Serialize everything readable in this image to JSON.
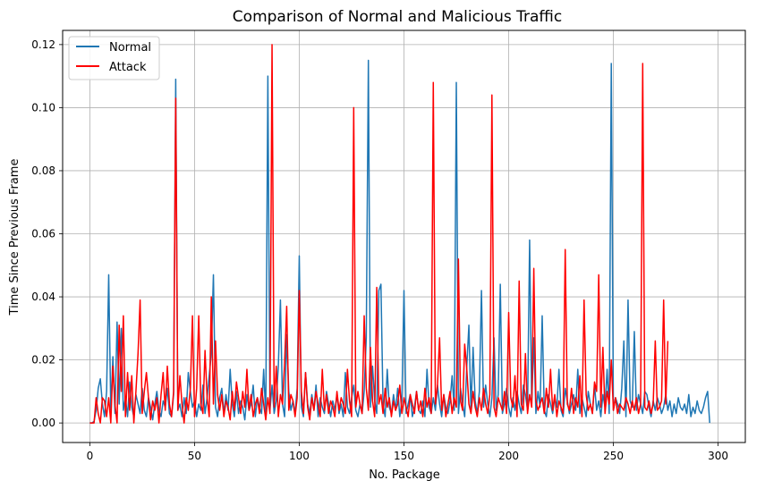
{
  "chart_data": {
    "type": "line",
    "title": "Comparison of Normal and Malicious Traffic",
    "xlabel": "No. Package",
    "ylabel": "Time Since Previous Frame",
    "xlim": [
      -13,
      313
    ],
    "ylim": [
      -0.0062,
      0.1245
    ],
    "xticks": [
      0,
      50,
      100,
      150,
      200,
      250,
      300
    ],
    "yticks": [
      0.0,
      0.02,
      0.04,
      0.06,
      0.08,
      0.1,
      0.12
    ],
    "ytick_labels": [
      "0.00",
      "0.02",
      "0.04",
      "0.06",
      "0.08",
      "0.10",
      "0.12"
    ],
    "grid": true,
    "legend_position": "top-left",
    "series": [
      {
        "name": "Normal",
        "color": "#1f77b4",
        "values": [
          0,
          0,
          0.0005,
          0.004,
          0.011,
          0.014,
          0.006,
          0.002,
          0.01,
          0.047,
          0.004,
          0.021,
          0.003,
          0.032,
          0.006,
          0.03,
          0.004,
          0.008,
          0.002,
          0.013,
          0.005,
          0.002,
          0.009,
          0.006,
          0.003,
          0.011,
          0.004,
          0.002,
          0.008,
          0.005,
          0.001,
          0.006,
          0.01,
          0.004,
          0.002,
          0.007,
          0.005,
          0.011,
          0.003,
          0.002,
          0.009,
          0.109,
          0.004,
          0.006,
          0.002,
          0.008,
          0.003,
          0.016,
          0.01,
          0.005,
          0.007,
          0.002,
          0.006,
          0.004,
          0.012,
          0.003,
          0.008,
          0.015,
          0.022,
          0.047,
          0.005,
          0.002,
          0.008,
          0.011,
          0.003,
          0.009,
          0.004,
          0.017,
          0.006,
          0.002,
          0.01,
          0.003,
          0.007,
          0.005,
          0.001,
          0.009,
          0.004,
          0.006,
          0.012,
          0.002,
          0.008,
          0.005,
          0.003,
          0.017,
          0.002,
          0.11,
          0.004,
          0.012,
          0.003,
          0.007,
          0.018,
          0.039,
          0.006,
          0.002,
          0.028,
          0.01,
          0.004,
          0.007,
          0.003,
          0.011,
          0.053,
          0.005,
          0.002,
          0.016,
          0.006,
          0.003,
          0.009,
          0.004,
          0.012,
          0.002,
          0.008,
          0.005,
          0.003,
          0.01,
          0.006,
          0.002,
          0.007,
          0.004,
          0.009,
          0.003,
          0.006,
          0.002,
          0.016,
          0.005,
          0.003,
          0.008,
          0.012,
          0.004,
          0.002,
          0.006,
          0.003,
          0.01,
          0.027,
          0.115,
          0.005,
          0.018,
          0.007,
          0.003,
          0.042,
          0.044,
          0.006,
          0.002,
          0.017,
          0.005,
          0.003,
          0.009,
          0.004,
          0.011,
          0.002,
          0.007,
          0.042,
          0.003,
          0.006,
          0.009,
          0.002,
          0.005,
          0.01,
          0.004,
          0.003,
          0.007,
          0.002,
          0.017,
          0.005,
          0.003,
          0.008,
          0.004,
          0.012,
          0.006,
          0.002,
          0.009,
          0.005,
          0.003,
          0.007,
          0.015,
          0.004,
          0.108,
          0.003,
          0.011,
          0.006,
          0.002,
          0.018,
          0.031,
          0.004,
          0.024,
          0.007,
          0.003,
          0.01,
          0.042,
          0.005,
          0.012,
          0.006,
          0.002,
          0.008,
          0.027,
          0.004,
          0.009,
          0.044,
          0.003,
          0.006,
          0.011,
          0.005,
          0.002,
          0.008,
          0.004,
          0.01,
          0.006,
          0.003,
          0.012,
          0.009,
          0.004,
          0.058,
          0.006,
          0.027,
          0.003,
          0.01,
          0.005,
          0.034,
          0.004,
          0.002,
          0.009,
          0.006,
          0.003,
          0.008,
          0.005,
          0.017,
          0.004,
          0.002,
          0.011,
          0.007,
          0.003,
          0.006,
          0.009,
          0.004,
          0.017,
          0.003,
          0.008,
          0.005,
          0.002,
          0.01,
          0.006,
          0.003,
          0.012,
          0.004,
          0.007,
          0.002,
          0.009,
          0.005,
          0.017,
          0.003,
          0.114,
          0.004,
          0.008,
          0.006,
          0.003,
          0.011,
          0.026,
          0.002,
          0.039,
          0.007,
          0.005,
          0.029,
          0.004,
          0.009,
          0.006,
          0.003,
          0.01,
          0.009,
          0.005,
          0.002,
          0.007,
          0.004,
          0.008,
          0.006,
          0.003,
          0.005,
          0.009,
          0.004,
          0.007,
          0.002,
          0.006,
          0.003,
          0.008,
          0.005,
          0.004,
          0.006,
          0.003,
          0.009,
          0.002,
          0.005,
          0.003,
          0.007,
          0.004,
          0.003,
          0.005,
          0.008,
          0.01,
          0
        ]
      },
      {
        "name": "Attack",
        "color": "#ff0000",
        "values": [
          0,
          0,
          0,
          0.008,
          0.003,
          0,
          0.008,
          0.007,
          0.002,
          0.008,
          0,
          0.018,
          0.006,
          0,
          0.031,
          0.01,
          0.034,
          0.002,
          0.016,
          0.004,
          0.015,
          0,
          0.01,
          0.022,
          0.039,
          0.003,
          0.01,
          0.016,
          0.008,
          0.001,
          0.007,
          0.004,
          0.008,
          0,
          0.009,
          0.016,
          0.004,
          0.018,
          0.006,
          0.002,
          0.01,
          0.103,
          0.004,
          0.015,
          0.006,
          0,
          0.008,
          0.004,
          0.011,
          0.034,
          0.002,
          0.011,
          0.034,
          0.006,
          0.003,
          0.023,
          0.008,
          0.002,
          0.04,
          0.006,
          0.026,
          0.009,
          0.004,
          0.009,
          0.002,
          0.007,
          0.005,
          0.001,
          0.01,
          0.004,
          0.013,
          0.008,
          0.003,
          0.01,
          0.005,
          0.017,
          0.004,
          0.009,
          0.002,
          0.006,
          0.008,
          0.003,
          0.011,
          0.006,
          0.001,
          0.008,
          0.003,
          0.12,
          0.005,
          0.018,
          0.002,
          0.009,
          0.006,
          0.019,
          0.037,
          0.004,
          0.009,
          0.007,
          0.002,
          0.008,
          0.042,
          0.01,
          0.003,
          0.016,
          0.005,
          0.001,
          0.008,
          0.004,
          0.01,
          0.006,
          0.002,
          0.017,
          0.004,
          0.009,
          0.003,
          0.007,
          0.005,
          0.002,
          0.01,
          0.004,
          0.008,
          0.006,
          0.003,
          0.017,
          0.007,
          0.002,
          0.1,
          0.005,
          0.01,
          0.006,
          0.003,
          0.034,
          0.011,
          0.004,
          0.024,
          0.007,
          0.002,
          0.043,
          0.006,
          0.009,
          0.003,
          0.011,
          0.005,
          0.008,
          0.002,
          0.007,
          0.004,
          0.006,
          0.012,
          0.003,
          0.008,
          0.005,
          0.002,
          0.009,
          0.006,
          0.003,
          0.01,
          0.004,
          0.007,
          0.002,
          0.011,
          0.005,
          0.008,
          0.003,
          0.108,
          0.006,
          0.012,
          0.027,
          0.004,
          0.009,
          0.002,
          0.006,
          0.01,
          0.003,
          0.008,
          0.005,
          0.052,
          0.007,
          0.004,
          0.025,
          0.017,
          0.006,
          0.003,
          0.01,
          0.005,
          0.002,
          0.008,
          0.004,
          0.011,
          0.006,
          0.003,
          0.009,
          0.104,
          0.005,
          0.002,
          0.008,
          0.006,
          0.004,
          0.01,
          0.003,
          0.035,
          0.008,
          0.005,
          0.015,
          0.002,
          0.045,
          0.006,
          0.004,
          0.022,
          0.003,
          0.009,
          0.005,
          0.049,
          0.007,
          0.004,
          0.006,
          0.008,
          0.003,
          0.011,
          0.005,
          0.017,
          0.004,
          0.009,
          0.002,
          0.007,
          0.005,
          0.003,
          0.055,
          0.006,
          0.004,
          0.011,
          0.003,
          0.008,
          0.005,
          0.015,
          0.002,
          0.039,
          0.009,
          0.004,
          0.006,
          0.003,
          0.013,
          0.01,
          0.047,
          0.005,
          0.024,
          0.003,
          0.01,
          0.006,
          0.02,
          0.004,
          0.008,
          0.003,
          0.006,
          0.005,
          0.004,
          0.008,
          0.006,
          0.003,
          0.007,
          0.004,
          0.008,
          0.003,
          0.006,
          0.114,
          0.005,
          0.004,
          0.007,
          0.003,
          0.006,
          0.026,
          0.004,
          0.005,
          0.007,
          0.039,
          0.006,
          0.026
        ]
      }
    ]
  }
}
